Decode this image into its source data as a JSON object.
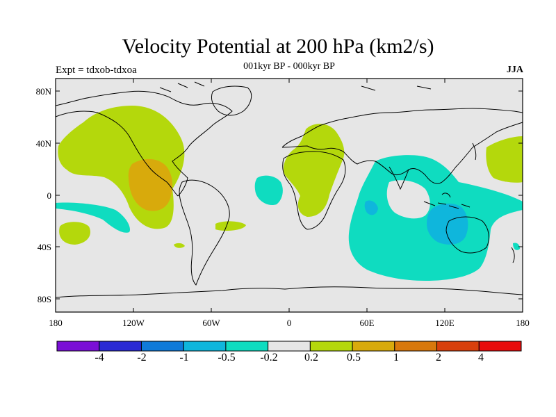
{
  "title": "Velocity Potential at 200 hPa (km2/s)",
  "subtitle": "001kyr BP - 000kyr BP",
  "left_label": "Expt = tdxob-tdxoa",
  "right_label": "JJA",
  "lat_labels": [
    "80N",
    "40N",
    "0",
    "40S",
    "80S"
  ],
  "lon_labels": [
    "180",
    "120W",
    "60W",
    "0",
    "60E",
    "120E",
    "180"
  ],
  "colorbar": {
    "labels": [
      "-4",
      "-2",
      "-1",
      "-0.5",
      "-0.2",
      "0.2",
      "0.5",
      "1",
      "2",
      "4"
    ],
    "colors": [
      "#7a0fd6",
      "#2a2ad4",
      "#0f7ad9",
      "#0fb6dc",
      "#0fdcc0",
      "#e6e6e6",
      "#b4d80c",
      "#d8aa0c",
      "#d8780c",
      "#d8400c",
      "#e80c0c"
    ]
  },
  "legend_colors": {
    "neutral": "#e6e6e6",
    "negative_weak": "#0fdcc0",
    "negative_mid": "#0fb6dc",
    "positive_weak": "#b4d80c",
    "positive_mid": "#d8aa0c"
  }
}
